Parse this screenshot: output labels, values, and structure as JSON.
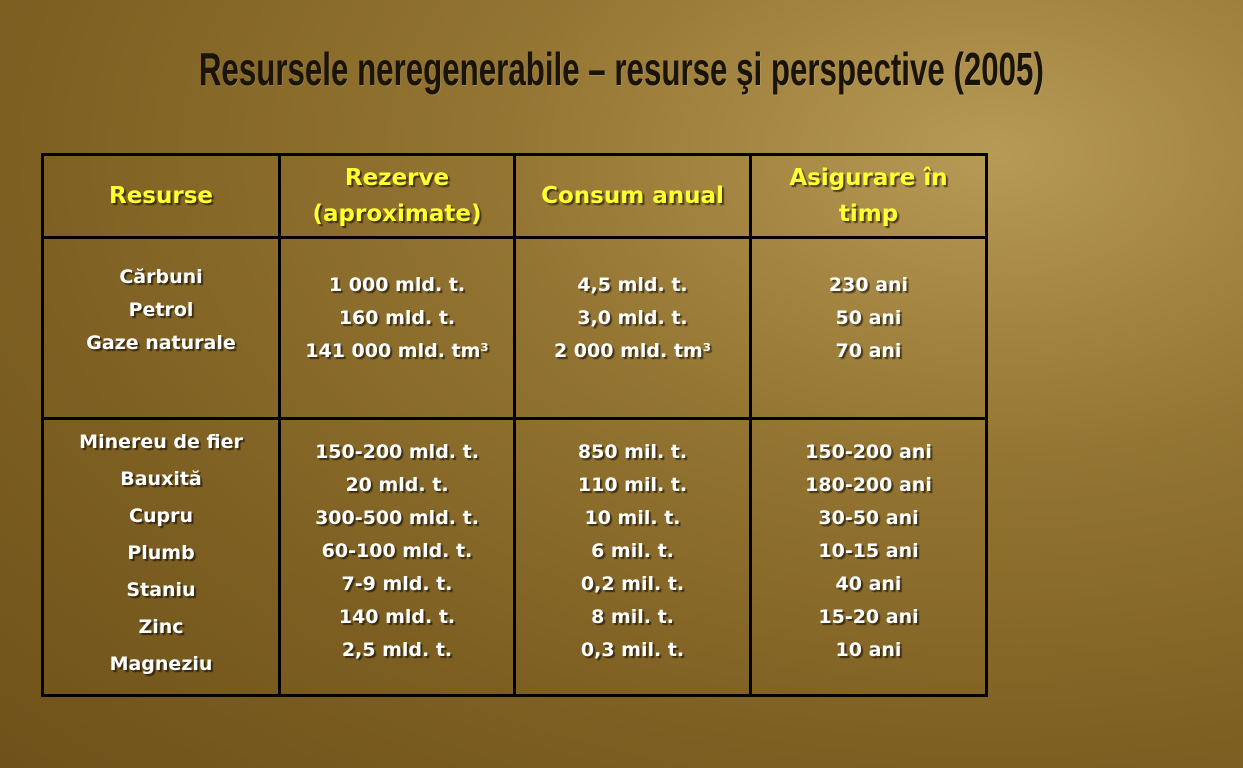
{
  "title": "Resursele neregenerabile – resurse şi perspective (2005)",
  "table": {
    "headers": [
      "Resurse",
      "Rezerve (aproximate)",
      "Consum anual",
      "Asigurare în timp"
    ],
    "header_lines": [
      [
        "Resurse"
      ],
      [
        "Rezerve",
        "(aproximate)"
      ],
      [
        "Consum anual"
      ],
      [
        "Asigurare în",
        "timp"
      ]
    ],
    "rows": [
      {
        "resurse": [
          "Cărbuni",
          "Petrol",
          "Gaze naturale"
        ],
        "rezerve": [
          "1 000 mld. t.",
          "160 mld. t.",
          "141 000 mld. tm³"
        ],
        "consum": [
          "4,5 mld. t.",
          "3,0 mld. t.",
          "2 000 mld. tm³"
        ],
        "asigurare": [
          "230 ani",
          "50 ani",
          "70 ani"
        ]
      },
      {
        "resurse": [
          "Minereu de fier",
          "Bauxită",
          "Cupru",
          "Plumb",
          "Staniu",
          "Zinc",
          "Magneziu"
        ],
        "rezerve": [
          "150-200 mld. t.",
          "20 mld. t.",
          "300-500 mld. t.",
          "60-100 mld. t.",
          "7-9 mld. t.",
          "140 mld. t.",
          "2,5 mld. t."
        ],
        "consum": [
          "850 mil. t.",
          "110 mil. t.",
          "10 mil. t.",
          "6 mil. t.",
          "0,2 mil. t.",
          "8 mil. t.",
          "0,3 mil. t."
        ],
        "asigurare": [
          "150-200 ani",
          "180-200 ani",
          "30-50 ani",
          "10-15 ani",
          "40 ani",
          "15-20 ani",
          "10 ani"
        ]
      }
    ]
  },
  "colors": {
    "header_text": "#ffff33",
    "cell_text": "#ffffff",
    "border": "#000000",
    "title": "#1a1408"
  }
}
